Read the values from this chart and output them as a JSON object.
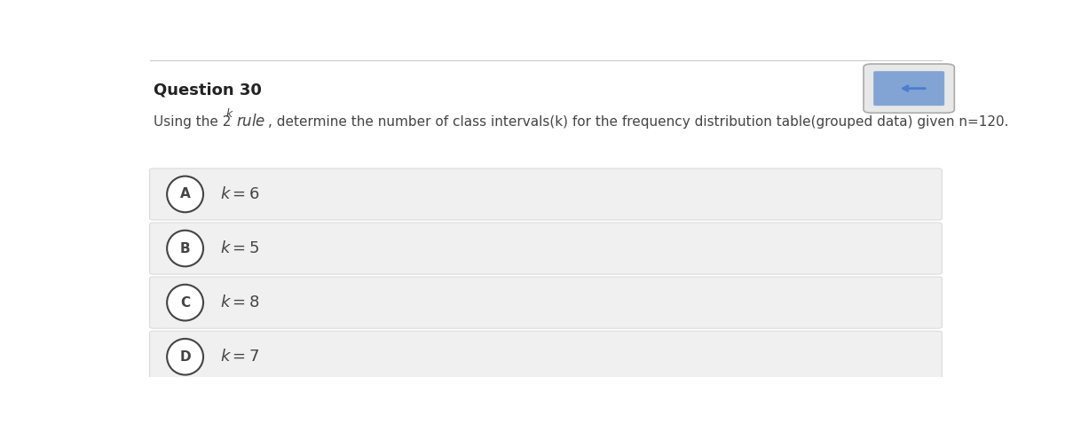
{
  "title": "Question 30",
  "question_prefix": "Using the 2",
  "superscript_k": "k",
  "italic_rule": " rule",
  "question_suffix": ", determine the number of class intervals(k) for the frequency distribution table(grouped data) given n=120.",
  "options": [
    {
      "label": "A",
      "value": "6"
    },
    {
      "label": "B",
      "value": "5"
    },
    {
      "label": "C",
      "value": "8"
    },
    {
      "label": "D",
      "value": "7"
    }
  ],
  "bg_color": "#ffffff",
  "option_bg_color": "#f0f0f0",
  "option_border_color": "#d8d8d8",
  "title_color": "#222222",
  "text_color": "#444444",
  "circle_edge_color": "#444444",
  "circle_fill_color": "#ffffff",
  "divider_color": "#cccccc",
  "title_fontsize": 13,
  "question_fontsize": 11,
  "option_fontsize": 13,
  "label_fontsize": 11
}
